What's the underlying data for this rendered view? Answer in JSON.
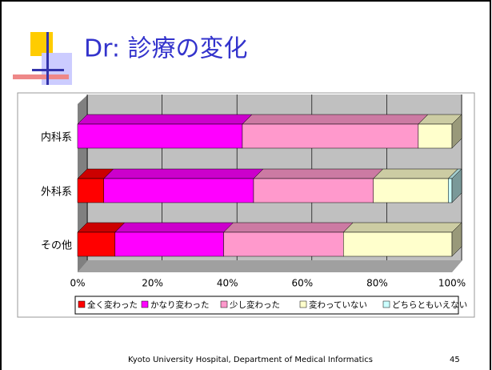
{
  "title": "Dr: 診療の変化",
  "footer": "Kyoto University Hospital, Department of Medical Informatics",
  "page_number": "45",
  "chart_data": {
    "type": "stacked_bar_horizontal_3d",
    "categories": [
      "内科系",
      "外科系",
      "その他"
    ],
    "series": [
      {
        "name": "全く変わった",
        "color": "#ff0000",
        "values": [
          0,
          7,
          10
        ]
      },
      {
        "name": "かなり変わった",
        "color": "#ff00ff",
        "values": [
          44,
          40,
          29
        ]
      },
      {
        "name": "少し変わった",
        "color": "#ff99cc",
        "values": [
          47,
          32,
          32
        ]
      },
      {
        "name": "変わっていない",
        "color": "#ffffcc",
        "values": [
          9,
          20,
          29
        ]
      },
      {
        "name": "どちらともいえない",
        "color": "#ccffff",
        "values": [
          0,
          1,
          0
        ]
      }
    ],
    "xlim": [
      0,
      100
    ],
    "xticks": [
      {
        "value": 0,
        "label": "0%"
      },
      {
        "value": 20,
        "label": "20%"
      },
      {
        "value": 40,
        "label": "40%"
      },
      {
        "value": 60,
        "label": "60%"
      },
      {
        "value": 80,
        "label": "80%"
      },
      {
        "value": 100,
        "label": "100%"
      }
    ],
    "grid": true,
    "legend": "bottom"
  }
}
